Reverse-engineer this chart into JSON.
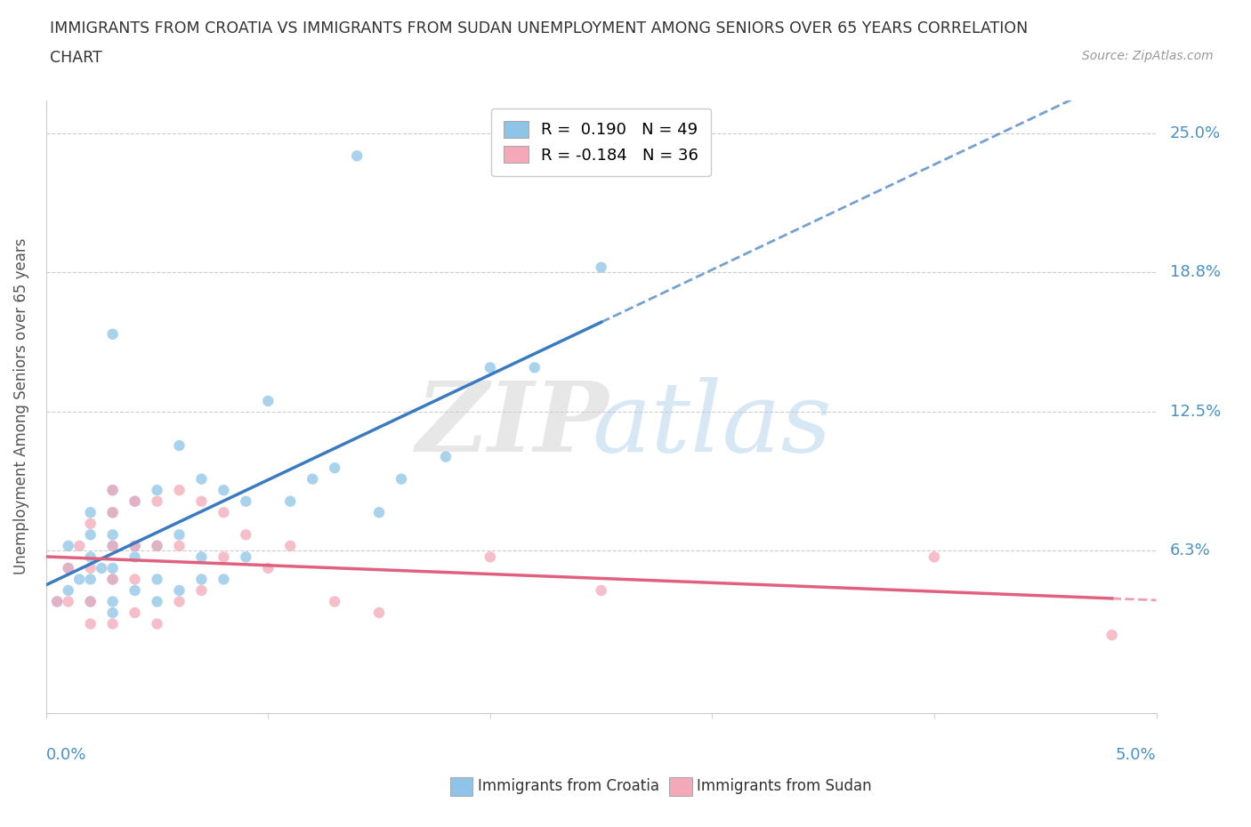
{
  "title_line1": "IMMIGRANTS FROM CROATIA VS IMMIGRANTS FROM SUDAN UNEMPLOYMENT AMONG SENIORS OVER 65 YEARS CORRELATION",
  "title_line2": "CHART",
  "source": "Source: ZipAtlas.com",
  "ylabel": "Unemployment Among Seniors over 65 years",
  "xlim": [
    0.0,
    0.05
  ],
  "ylim": [
    -0.01,
    0.265
  ],
  "legend_croatia": "Immigrants from Croatia",
  "legend_sudan": "Immigrants from Sudan",
  "R_croatia": 0.19,
  "N_croatia": 49,
  "R_sudan": -0.184,
  "N_sudan": 36,
  "croatia_color": "#8dc4e8",
  "sudan_color": "#f4a8b8",
  "croatia_line_color": "#3a7abf",
  "sudan_line_color": "#e06080",
  "ytick_positions": [
    0.0,
    0.063,
    0.125,
    0.188,
    0.25
  ],
  "ytick_labels": [
    "",
    "6.3%",
    "12.5%",
    "18.8%",
    "25.0%"
  ],
  "croatia_x": [
    0.0005,
    0.001,
    0.001,
    0.001,
    0.0015,
    0.002,
    0.002,
    0.002,
    0.002,
    0.002,
    0.0025,
    0.003,
    0.003,
    0.003,
    0.003,
    0.003,
    0.003,
    0.003,
    0.003,
    0.003,
    0.004,
    0.004,
    0.004,
    0.004,
    0.005,
    0.005,
    0.005,
    0.005,
    0.006,
    0.006,
    0.006,
    0.007,
    0.007,
    0.007,
    0.008,
    0.008,
    0.009,
    0.009,
    0.01,
    0.011,
    0.012,
    0.013,
    0.014,
    0.015,
    0.016,
    0.018,
    0.02,
    0.022,
    0.025
  ],
  "croatia_y": [
    0.04,
    0.045,
    0.055,
    0.065,
    0.05,
    0.04,
    0.05,
    0.06,
    0.07,
    0.08,
    0.055,
    0.035,
    0.04,
    0.05,
    0.055,
    0.065,
    0.07,
    0.08,
    0.09,
    0.16,
    0.045,
    0.06,
    0.065,
    0.085,
    0.04,
    0.05,
    0.065,
    0.09,
    0.045,
    0.07,
    0.11,
    0.05,
    0.06,
    0.095,
    0.05,
    0.09,
    0.06,
    0.085,
    0.13,
    0.085,
    0.095,
    0.1,
    0.24,
    0.08,
    0.095,
    0.105,
    0.145,
    0.145,
    0.19
  ],
  "sudan_x": [
    0.0005,
    0.001,
    0.001,
    0.0015,
    0.002,
    0.002,
    0.002,
    0.002,
    0.003,
    0.003,
    0.003,
    0.003,
    0.003,
    0.004,
    0.004,
    0.004,
    0.004,
    0.005,
    0.005,
    0.005,
    0.006,
    0.006,
    0.006,
    0.007,
    0.007,
    0.008,
    0.008,
    0.009,
    0.01,
    0.011,
    0.013,
    0.015,
    0.02,
    0.025,
    0.04,
    0.048
  ],
  "sudan_y": [
    0.04,
    0.04,
    0.055,
    0.065,
    0.03,
    0.04,
    0.055,
    0.075,
    0.03,
    0.05,
    0.065,
    0.08,
    0.09,
    0.035,
    0.05,
    0.065,
    0.085,
    0.03,
    0.065,
    0.085,
    0.04,
    0.065,
    0.09,
    0.045,
    0.085,
    0.06,
    0.08,
    0.07,
    0.055,
    0.065,
    0.04,
    0.035,
    0.06,
    0.045,
    0.06,
    0.025
  ]
}
